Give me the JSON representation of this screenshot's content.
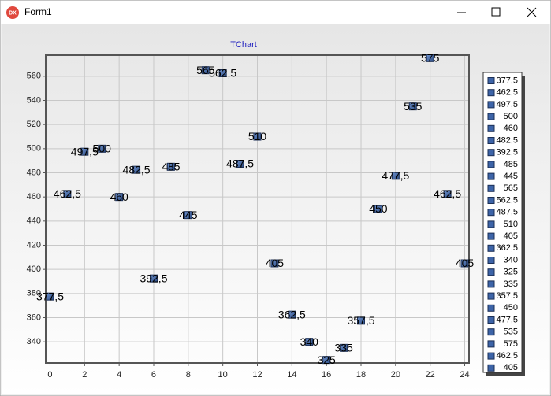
{
  "window": {
    "title": "Form1",
    "icon": "DX"
  },
  "chart_data": {
    "type": "scatter",
    "title": "TChart",
    "x": [
      0,
      1,
      2,
      3,
      4,
      5,
      6,
      7,
      8,
      9,
      10,
      11,
      12,
      13,
      14,
      15,
      16,
      17,
      18,
      19,
      20,
      21,
      22,
      23,
      24
    ],
    "values": [
      377.5,
      462.5,
      497.5,
      500,
      460,
      482.5,
      392.5,
      485,
      445,
      565,
      562.5,
      487.5,
      510,
      405,
      362.5,
      340,
      325,
      335,
      357.5,
      450,
      477.5,
      535,
      575,
      462.5,
      405
    ],
    "value_labels": [
      "377,5",
      "462,5",
      "497,5",
      "500",
      "460",
      "482,5",
      "392,5",
      "485",
      "445",
      "565",
      "562,5",
      "487,5",
      "510",
      "405",
      "362,5",
      "340",
      "325",
      "335",
      "357,5",
      "450",
      "477,5",
      "535",
      "575",
      "462,5",
      "405"
    ],
    "color": "#3d64a8",
    "xlim": [
      -0.25,
      24.25
    ],
    "xticks": [
      0,
      2,
      4,
      6,
      8,
      10,
      12,
      14,
      16,
      18,
      20,
      22,
      24
    ],
    "ylim": [
      322.5,
      577.5
    ],
    "yticks": [
      340,
      360,
      380,
      400,
      420,
      440,
      460,
      480,
      500,
      520,
      540,
      560
    ],
    "grid": true,
    "legend": "right"
  }
}
